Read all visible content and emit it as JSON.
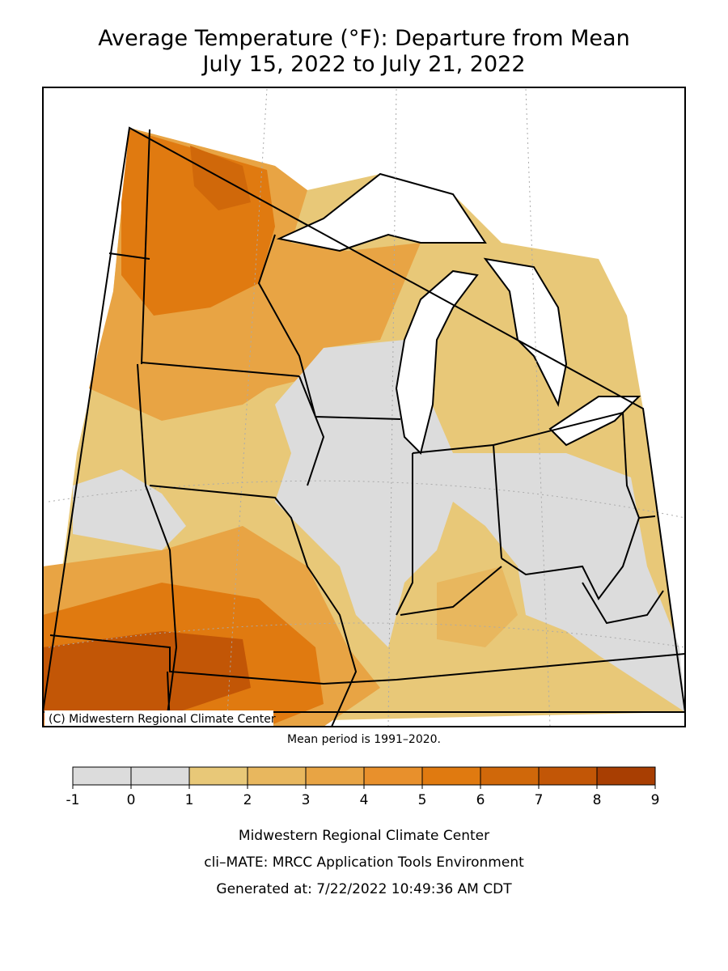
{
  "header": {
    "title_lines": [
      "Average Temperature (°F): Departure from Mean",
      "July 15, 2022 to July 21, 2022"
    ]
  },
  "map": {
    "copyright": "(C) Midwestern Regional Climate Center"
  },
  "note": "Mean period is 1991–2020.",
  "legend": {
    "ticks": [
      -1,
      0,
      1,
      2,
      3,
      4,
      5,
      6,
      7,
      8,
      9
    ],
    "colors": [
      "#dcdcdc",
      "#dcdcdc",
      "#e8c878",
      "#e8b75e",
      "#e8a444",
      "#e8902c",
      "#e07a10",
      "#d0680a",
      "#c25606",
      "#a83e02"
    ]
  },
  "footer": {
    "lines": [
      "Midwestern Regional Climate Center",
      "cli–MATE: MRCC Application Tools Environment",
      "Generated at: 7/22/2022 10:49:36 AM CDT"
    ]
  }
}
